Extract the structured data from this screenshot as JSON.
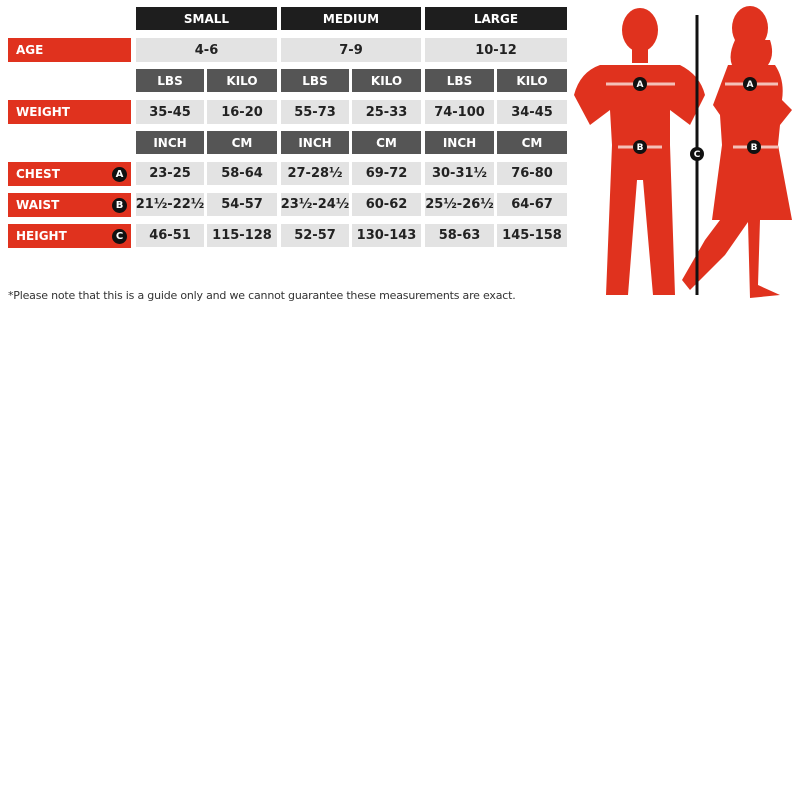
{
  "sizes": [
    "SMALL",
    "MEDIUM",
    "LARGE"
  ],
  "rows": {
    "age": {
      "label": "AGE",
      "values": [
        "4-6",
        "7-9",
        "10-12"
      ]
    },
    "weight_units": [
      "LBS",
      "KILO"
    ],
    "weight": {
      "label": "WEIGHT",
      "values": [
        "35-45",
        "16-20",
        "55-73",
        "25-33",
        "74-100",
        "34-45"
      ]
    },
    "length_units": [
      "INCH",
      "CM"
    ],
    "chest": {
      "label": "CHEST",
      "marker": "A",
      "values": [
        "23-25",
        "58-64",
        "27-28½",
        "69-72",
        "30-31½",
        "76-80"
      ]
    },
    "waist": {
      "label": "WAIST",
      "marker": "B",
      "values": [
        "21½-22½",
        "54-57",
        "23½-24½",
        "60-62",
        "25½-26½",
        "64-67"
      ]
    },
    "height": {
      "label": "HEIGHT",
      "marker": "C",
      "values": [
        "46-51",
        "115-128",
        "52-57",
        "130-143",
        "58-63",
        "145-158"
      ]
    }
  },
  "note": "*Please note that this is a guide only and we cannot guarantee these measurements are exact.",
  "figure": {
    "markers": [
      "A",
      "B",
      "C"
    ],
    "colors": {
      "silhouette": "#e0321e",
      "label": "#e0321e",
      "header": "#1e1e1e",
      "unit": "#555555",
      "cell": "#e3e3e3"
    }
  }
}
